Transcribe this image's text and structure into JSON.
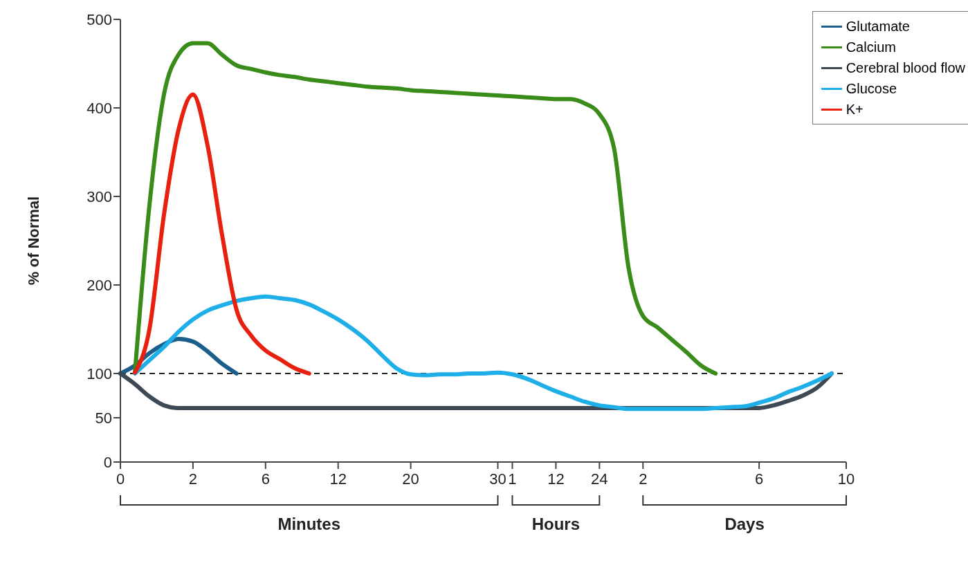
{
  "chart_data": {
    "type": "line",
    "ylabel": "% of Normal",
    "ylim": [
      0,
      500
    ],
    "yticks": [
      0,
      50,
      100,
      200,
      300,
      400,
      500
    ],
    "categories": [
      "0",
      null,
      null,
      null,
      null,
      "2",
      null,
      null,
      null,
      null,
      "6",
      null,
      null,
      null,
      null,
      "12",
      null,
      null,
      null,
      null,
      "20",
      null,
      null,
      null,
      null,
      null,
      "30",
      "1",
      null,
      null,
      "12",
      null,
      null,
      "24",
      null,
      null,
      "2",
      null,
      null,
      null,
      null,
      null,
      null,
      null,
      "6",
      null,
      null,
      null,
      null,
      null,
      "10"
    ],
    "grid": false,
    "legend": "top right",
    "marker": "none",
    "line_style": "solid",
    "ref_lines": [
      {
        "axis": "y",
        "value": 100,
        "color": "#222222",
        "line_style": "dashed"
      }
    ],
    "annotations": [
      "Minutes",
      "Hours",
      "Days"
    ],
    "series": [
      {
        "name": "Glutamate",
        "color": "#1b5e8c",
        "values": [
          100,
          109,
          123,
          133,
          139,
          136,
          125,
          111,
          100,
          null,
          null,
          null,
          null,
          null,
          null,
          null,
          null,
          null,
          null,
          null,
          null,
          null,
          null,
          null,
          null,
          null,
          null,
          null,
          null,
          null,
          null,
          null,
          null,
          null,
          null,
          null,
          null,
          null,
          null,
          null,
          null,
          null,
          null,
          null,
          null,
          null,
          null,
          null,
          null,
          null,
          null
        ]
      },
      {
        "name": "Calcium",
        "color": "#3a8c1a",
        "values": [
          null,
          101,
          290,
          415,
          460,
          473,
          473,
          460,
          448,
          444,
          440,
          437,
          435,
          432,
          430,
          428,
          426,
          424,
          423,
          422,
          420,
          419,
          418,
          417,
          416,
          415,
          414,
          413,
          412,
          411,
          410,
          410,
          405,
          393,
          355,
          220,
          165,
          152,
          138,
          124,
          109,
          100,
          null,
          null,
          null,
          null,
          null,
          null,
          null,
          null,
          null
        ]
      },
      {
        "name": "Cerebral blood flow",
        "color": "#3d4a55",
        "values": [
          100,
          88,
          74,
          64,
          61,
          61,
          61,
          61,
          61,
          61,
          61,
          61,
          61,
          61,
          61,
          61,
          61,
          61,
          61,
          61,
          61,
          61,
          61,
          61,
          61,
          61,
          61,
          61,
          61,
          61,
          61,
          61,
          61,
          61,
          61,
          61,
          61,
          61,
          61,
          61,
          61,
          61,
          61,
          61,
          61,
          64,
          69,
          75,
          84,
          100,
          null
        ]
      },
      {
        "name": "Glucose",
        "color": "#1eaee8",
        "values": [
          null,
          100,
          115,
          130,
          147,
          161,
          171,
          177,
          182,
          185,
          187,
          185,
          183,
          178,
          170,
          161,
          150,
          137,
          121,
          106,
          99,
          98,
          99,
          99,
          100,
          100,
          101,
          99,
          94,
          87,
          80,
          74,
          68,
          64,
          62,
          60,
          60,
          60,
          60,
          60,
          60,
          61,
          62,
          63,
          67,
          72,
          79,
          85,
          92,
          100,
          null
        ]
      },
      {
        "name": "K+",
        "color": "#e8200f",
        "values": [
          null,
          101,
          150,
          279,
          375,
          415,
          358,
          257,
          172,
          143,
          126,
          116,
          106,
          100,
          null,
          null,
          null,
          null,
          null,
          null,
          null,
          null,
          null,
          null,
          null,
          null,
          null,
          null,
          null,
          null,
          null,
          null,
          null,
          null,
          null,
          null,
          null,
          null,
          null,
          null,
          null,
          null,
          null,
          null,
          null,
          null,
          null,
          null,
          null,
          null,
          null
        ]
      }
    ]
  }
}
